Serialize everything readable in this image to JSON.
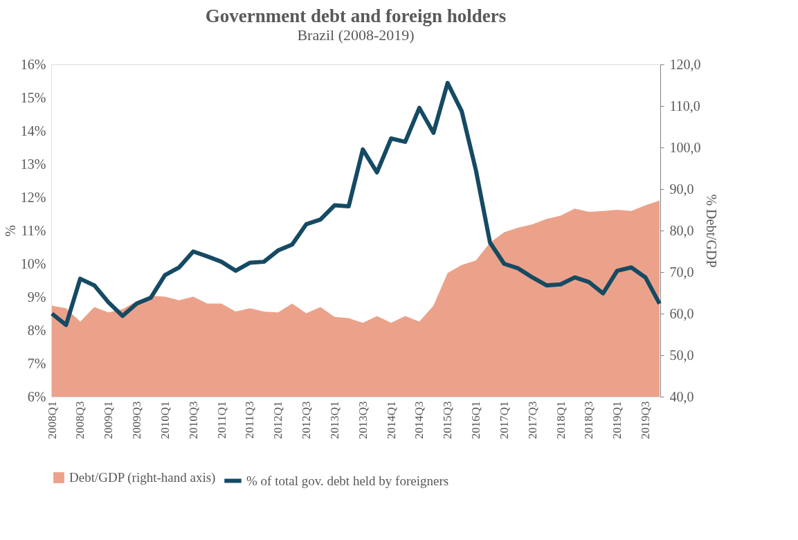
{
  "chart_data": {
    "type": "line",
    "title": "Government debt and foreign holders",
    "subtitle": "Brazil (2008-2019)",
    "ylabel": "%",
    "y2label": "% Debt/GDP",
    "categories": [
      "2008Q1",
      null,
      "2008Q3",
      null,
      "2009Q1",
      null,
      "2009Q3",
      null,
      "2010Q1",
      null,
      "2010Q3",
      null,
      "2011Q1",
      null,
      "2011Q3",
      null,
      "2012Q1",
      null,
      "2012Q3",
      null,
      "2013Q1",
      null,
      "2013Q3",
      null,
      "2014Q1",
      null,
      "2014Q3",
      null,
      "2015Q3",
      null,
      "2016Q1",
      null,
      "2017Q1",
      null,
      "2017Q3",
      null,
      "2018Q1",
      null,
      "2018Q3",
      null,
      "2019Q1",
      null,
      "2019Q3",
      null
    ],
    "series": [
      {
        "name": "Debt/GDP (right-hand axis)",
        "type": "area",
        "axis": "y2",
        "color": "#eca28a",
        "values": [
          61.9,
          61.3,
          58.1,
          61.6,
          60.3,
          61.1,
          63.0,
          64.3,
          64.1,
          63.2,
          64.1,
          62.4,
          62.4,
          60.5,
          61.3,
          60.5,
          60.3,
          62.4,
          60.1,
          61.6,
          59.2,
          58.9,
          57.8,
          59.4,
          57.8,
          59.4,
          58.1,
          61.9,
          69.8,
          71.7,
          72.8,
          77.1,
          79.6,
          80.7,
          81.5,
          82.8,
          83.6,
          85.3,
          84.5,
          84.7,
          85.0,
          84.7,
          86.1,
          87.2
        ]
      },
      {
        "name": "% of total gov. debt held by foreigners",
        "color": "#154a63",
        "values": [
          8.5,
          8.16,
          9.55,
          9.35,
          8.84,
          8.43,
          8.8,
          8.98,
          9.66,
          9.89,
          10.37,
          10.22,
          10.06,
          9.79,
          10.03,
          10.06,
          10.4,
          10.58,
          11.19,
          11.33,
          11.76,
          11.73,
          13.44,
          12.75,
          13.77,
          13.67,
          14.69,
          13.94,
          15.44,
          14.59,
          12.82,
          10.64,
          10.0,
          9.86,
          9.59,
          9.35,
          9.38,
          9.59,
          9.45,
          9.11,
          9.79,
          9.89,
          9.59,
          8.8
        ]
      }
    ],
    "ylim": [
      6,
      16
    ],
    "yticks": [
      {
        "value": 6,
        "label": "6%"
      },
      {
        "value": 7,
        "label": "7%"
      },
      {
        "value": 8,
        "label": "8%"
      },
      {
        "value": 9,
        "label": "9%"
      },
      {
        "value": 10,
        "label": "10%"
      },
      {
        "value": 11,
        "label": "11%"
      },
      {
        "value": 12,
        "label": "12%"
      },
      {
        "value": 13,
        "label": "13%"
      },
      {
        "value": 14,
        "label": "14%"
      },
      {
        "value": 15,
        "label": "15%"
      },
      {
        "value": 16,
        "label": "16%"
      }
    ],
    "y2lim": [
      40,
      120
    ],
    "y2ticks": [
      {
        "value": 40,
        "label": "40,0"
      },
      {
        "value": 50,
        "label": "50,0"
      },
      {
        "value": 60,
        "label": "60,0"
      },
      {
        "value": 70,
        "label": "70,0"
      },
      {
        "value": 80,
        "label": "80,0"
      },
      {
        "value": 90,
        "label": "90,0"
      },
      {
        "value": 100,
        "label": "100,0"
      },
      {
        "value": 110,
        "label": "110,0"
      },
      {
        "value": 120,
        "label": "120,0"
      }
    ],
    "grid": false,
    "legend": "bottom",
    "marker": "none",
    "line_style": "solid"
  }
}
